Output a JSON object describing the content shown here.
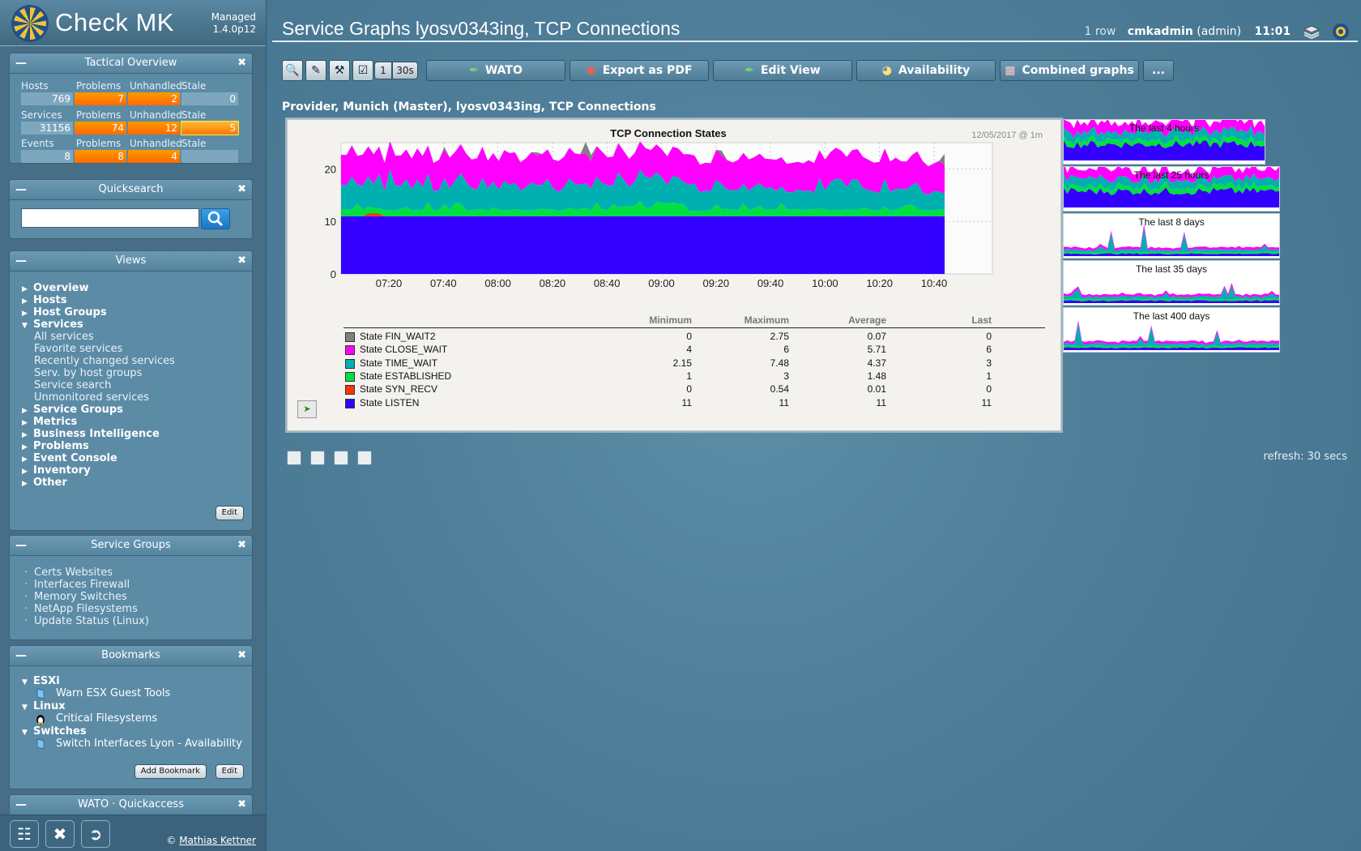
{
  "app": {
    "brand": "Check MK",
    "edition": "Managed",
    "version": "1.4.0p12"
  },
  "tactical": {
    "title": "Tactical Overview",
    "rows": [
      {
        "labels": [
          "Hosts",
          "Problems",
          "Unhandled",
          "Stale"
        ],
        "values": [
          "769",
          "7",
          "2",
          "0"
        ]
      },
      {
        "labels": [
          "Services",
          "Problems",
          "Unhandled",
          "Stale"
        ],
        "values": [
          "31156",
          "74",
          "12",
          "5"
        ]
      },
      {
        "labels": [
          "Events",
          "Problems",
          "Unhandled",
          "Stale"
        ],
        "values": [
          "8",
          "8",
          "4",
          ""
        ]
      }
    ]
  },
  "quicksearch": {
    "title": "Quicksearch",
    "placeholder": ""
  },
  "views": {
    "title": "Views",
    "items": [
      "Overview",
      "Hosts",
      "Host Groups",
      "Services",
      "Service Groups",
      "Metrics",
      "Business Intelligence",
      "Problems",
      "Event Console",
      "Inventory",
      "Other"
    ],
    "services_sub": [
      "All services",
      "Favorite services",
      "Recently changed services",
      "Serv. by host groups",
      "Service search",
      "Unmonitored services"
    ],
    "edit_label": "Edit"
  },
  "service_groups": {
    "title": "Service Groups",
    "items": [
      "Certs Websites",
      "Interfaces Firewall",
      "Memory Switches",
      "NetApp Filesystems",
      "Update Status (Linux)"
    ]
  },
  "bookmarks": {
    "title": "Bookmarks",
    "groups": [
      {
        "name": "ESXi",
        "items": [
          "Warn ESX Guest Tools"
        ]
      },
      {
        "name": "Linux",
        "items": [
          "Critical Filesystems"
        ]
      },
      {
        "name": "Switches",
        "items": [
          "Switch Interfaces Lyon - Availability"
        ]
      }
    ],
    "add_label": "Add Bookmark",
    "edit_label": "Edit"
  },
  "wato_quickaccess": {
    "title": "WATO · Quickaccess"
  },
  "footer": {
    "copyright_prefix": "©",
    "author": "Mathias Kettner"
  },
  "page": {
    "title": "Service Graphs lyosv0343ing, TCP Connections",
    "row_count": "1 row",
    "user": "cmkadmin",
    "role": "(admin)",
    "time": "11:01",
    "subtitle": "Provider, Munich (Master), lyosv0343ing, TCP Connections",
    "refresh": "refresh: 30 secs"
  },
  "toolbar": {
    "counter_1": "1",
    "counter_2": "30s",
    "buttons": [
      "WATO",
      "Export as PDF",
      "Edit View",
      "Availability",
      "Combined graphs",
      "..."
    ]
  },
  "chart_data": {
    "type": "area",
    "title": "TCP Connection States",
    "timestamp": "12/05/2017 @ 1m",
    "x_ticks": [
      "07:20",
      "07:40",
      "08:00",
      "08:20",
      "08:40",
      "09:00",
      "09:20",
      "09:40",
      "10:00",
      "10:20",
      "10:40"
    ],
    "y_ticks": [
      0,
      10,
      20
    ],
    "ylim": [
      0,
      25
    ],
    "stacked": true,
    "legend_headers": [
      "Minimum",
      "Maximum",
      "Average",
      "Last"
    ],
    "series": [
      {
        "name": "State FIN_WAIT2",
        "color": "#808080",
        "min": "0",
        "max": "2.75",
        "avg": "0.07",
        "last": "0"
      },
      {
        "name": "State CLOSE_WAIT",
        "color": "#ff00ff",
        "min": "4",
        "max": "6",
        "avg": "5.71",
        "last": "6"
      },
      {
        "name": "State TIME_WAIT",
        "color": "#00b0b0",
        "min": "2.15",
        "max": "7.48",
        "avg": "4.37",
        "last": "3"
      },
      {
        "name": "State ESTABLISHED",
        "color": "#00e040",
        "min": "1",
        "max": "3",
        "avg": "1.48",
        "last": "1"
      },
      {
        "name": "State SYN_RECV",
        "color": "#ff3300",
        "min": "0",
        "max": "0.54",
        "avg": "0.01",
        "last": "0"
      },
      {
        "name": "State LISTEN",
        "color": "#3300ff",
        "min": "11",
        "max": "11",
        "avg": "11",
        "last": "11"
      }
    ]
  },
  "thumbnails": [
    "The last 4 hours",
    "The last 25 hours",
    "The last 8 days",
    "The last 35 days",
    "The last 400 days"
  ]
}
